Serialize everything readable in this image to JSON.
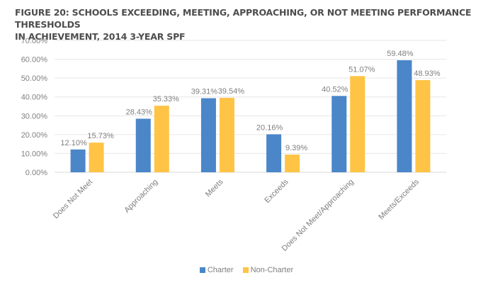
{
  "title_line1": "FIGURE 20: SCHOOLS EXCEEDING, MEETING, APPROACHING, OR NOT MEETING PERFORMANCE THRESHOLDS",
  "title_line2": "IN ACHIEVEMENT, 2014 3-YEAR SPF",
  "chart_data": {
    "type": "bar",
    "title": "FIGURE 20: SCHOOLS EXCEEDING, MEETING, APPROACHING, OR NOT MEETING PERFORMANCE THRESHOLDS IN ACHIEVEMENT, 2014 3-YEAR SPF",
    "xlabel": "",
    "ylabel": "",
    "ylim": [
      0,
      70
    ],
    "yticks": [
      "0.00%",
      "10.00%",
      "20.00%",
      "30.00%",
      "40.00%",
      "50.00%",
      "60.00%",
      "70.00%"
    ],
    "grid": true,
    "legend_position": "bottom",
    "categories": [
      "Does Not Meet",
      "Approaching",
      "Meets",
      "Exceeds",
      "Does Not Meet/Approaching",
      "Meets/Exceeds"
    ],
    "series": [
      {
        "name": "Charter",
        "color": "#4a86c8",
        "values": [
          12.1,
          28.43,
          39.31,
          20.16,
          40.52,
          59.48
        ],
        "labels": [
          "12.10%",
          "28.43%",
          "39.31%",
          "20.16%",
          "40.52%",
          "59.48%"
        ]
      },
      {
        "name": "Non-Charter",
        "color": "#ffc445",
        "values": [
          15.73,
          35.33,
          39.54,
          9.39,
          51.07,
          48.93
        ],
        "labels": [
          "15.73%",
          "35.33%",
          "39.54%",
          "9.39%",
          "51.07%",
          "48.93%"
        ]
      }
    ]
  }
}
